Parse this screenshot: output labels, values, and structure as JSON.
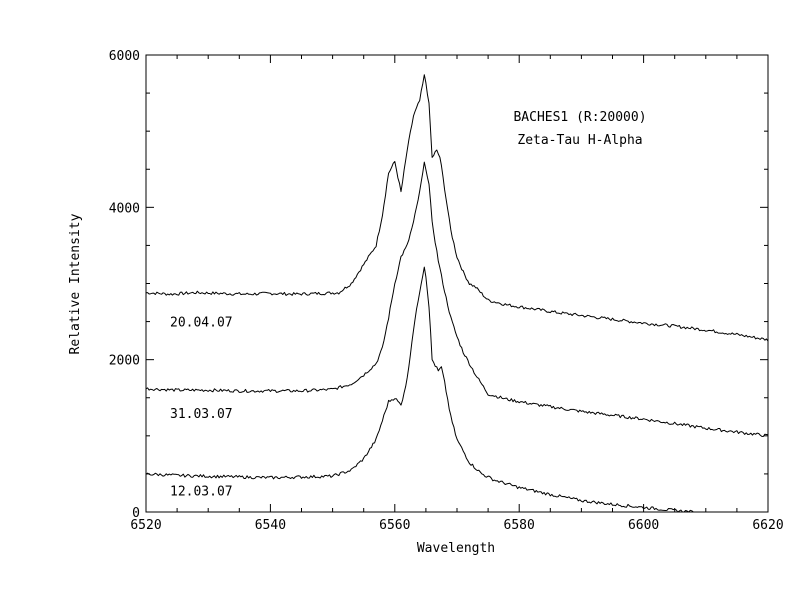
{
  "chart_data": {
    "type": "line",
    "xlabel": "Wavelength",
    "ylabel": "Relative Intensity",
    "xlim": [
      6520,
      6620
    ],
    "ylim": [
      0,
      6000
    ],
    "x_ticks": [
      "6520",
      "6540",
      "6560",
      "6580",
      "6600",
      "6620"
    ],
    "y_ticks": [
      "0",
      "2000",
      "4000",
      "6000"
    ],
    "annotations": [
      "BACHES1 (R:20000)",
      "Zeta-Tau H-Alpha"
    ],
    "grid": false,
    "legend": "none",
    "series": [
      {
        "name": "20.04.07",
        "x": [
          6520,
          6524,
          6528,
          6532,
          6536,
          6540,
          6544,
          6548,
          6551,
          6553,
          6555,
          6557,
          6558,
          6559,
          6560,
          6561,
          6562,
          6563,
          6564,
          6564.8,
          6565.5,
          6566,
          6566.7,
          6567.3,
          6568,
          6569,
          6570,
          6571,
          6572,
          6573,
          6575,
          6578,
          6582,
          6586,
          6590,
          6595,
          6600,
          6605,
          6610,
          6615,
          6620
        ],
        "y": [
          2880,
          2860,
          2880,
          2870,
          2860,
          2870,
          2860,
          2870,
          2880,
          3000,
          3250,
          3500,
          3900,
          4450,
          4600,
          4200,
          4750,
          5200,
          5400,
          5750,
          5350,
          4650,
          4750,
          4650,
          4250,
          3700,
          3350,
          3150,
          3000,
          2950,
          2780,
          2720,
          2670,
          2620,
          2580,
          2530,
          2480,
          2440,
          2390,
          2330,
          2260
        ]
      },
      {
        "name": "31.03.07",
        "x": [
          6520,
          6525,
          6530,
          6535,
          6540,
          6545,
          6550,
          6553,
          6555,
          6557,
          6558,
          6559,
          6560,
          6561,
          6562,
          6563,
          6564,
          6564.8,
          6565.5,
          6566,
          6567,
          6568,
          6569,
          6570,
          6571,
          6572,
          6573,
          6575,
          6578,
          6582,
          6586,
          6590,
          6595,
          6600,
          6605,
          6610,
          6615,
          6620
        ],
        "y": [
          1620,
          1600,
          1600,
          1590,
          1590,
          1590,
          1610,
          1680,
          1800,
          1950,
          2150,
          2550,
          3000,
          3350,
          3500,
          3800,
          4200,
          4600,
          4300,
          3800,
          3300,
          2900,
          2550,
          2300,
          2100,
          1950,
          1800,
          1550,
          1480,
          1420,
          1370,
          1320,
          1270,
          1220,
          1160,
          1100,
          1050,
          1000
        ]
      },
      {
        "name": "12.03.07",
        "x": [
          6520,
          6525,
          6530,
          6535,
          6540,
          6545,
          6550,
          6553,
          6555,
          6557,
          6558,
          6559,
          6560,
          6561,
          6562,
          6563,
          6564,
          6564.8,
          6565.5,
          6566,
          6567,
          6567.5,
          6568,
          6569,
          6570,
          6571,
          6572,
          6574,
          6576,
          6580,
          6585,
          6590,
          6595,
          6600,
          6605,
          6608
        ],
        "y": [
          500,
          480,
          470,
          460,
          450,
          460,
          470,
          550,
          700,
          950,
          1200,
          1450,
          1500,
          1400,
          1750,
          2400,
          2900,
          3250,
          2700,
          2000,
          1850,
          1900,
          1700,
          1250,
          950,
          800,
          650,
          500,
          420,
          320,
          230,
          150,
          100,
          60,
          20,
          0
        ]
      }
    ]
  }
}
